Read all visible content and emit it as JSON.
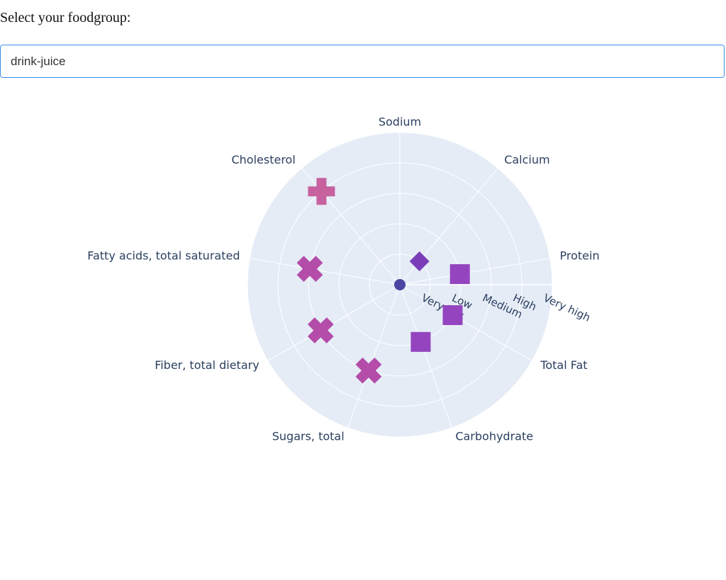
{
  "prompt": "Select your foodgroup:",
  "dropdown": {
    "selected": "drink-juice"
  },
  "chart_data": {
    "type": "polar-scatter",
    "theta_categories": [
      "Sodium",
      "Calcium",
      "Protein",
      "Total Fat",
      "Carbohydrate",
      "Sugars, total",
      "Fiber, total dietary",
      "Fatty acids, total saturated",
      "Cholesterol"
    ],
    "radial_ticks": [
      "Very low",
      "Low",
      "Medium",
      "High",
      "Very high"
    ],
    "radial_range": [
      0,
      5
    ],
    "grid": true,
    "points": [
      {
        "theta": "Sodium",
        "r": 0,
        "symbol": "circle",
        "color": "#4b45a3"
      },
      {
        "theta": "Calcium",
        "r": 1,
        "symbol": "diamond",
        "color": "#7a3fb8"
      },
      {
        "theta": "Protein",
        "r": 2,
        "symbol": "square",
        "color": "#9444bf"
      },
      {
        "theta": "Total Fat",
        "r": 2,
        "symbol": "square",
        "color": "#9444bf"
      },
      {
        "theta": "Carbohydrate",
        "r": 2,
        "symbol": "square",
        "color": "#9444bf"
      },
      {
        "theta": "Sugars, total",
        "r": 3,
        "symbol": "x",
        "color": "#b44ca9"
      },
      {
        "theta": "Fiber, total dietary",
        "r": 3,
        "symbol": "x",
        "color": "#b44ca9"
      },
      {
        "theta": "Fatty acids, total saturated",
        "r": 3,
        "symbol": "x",
        "color": "#b44ca9"
      },
      {
        "theta": "Cholesterol",
        "r": 4,
        "symbol": "cross",
        "color": "#c7629f"
      }
    ],
    "colors": {
      "background": "#e5ecf6",
      "grid": "#ffffff"
    }
  }
}
